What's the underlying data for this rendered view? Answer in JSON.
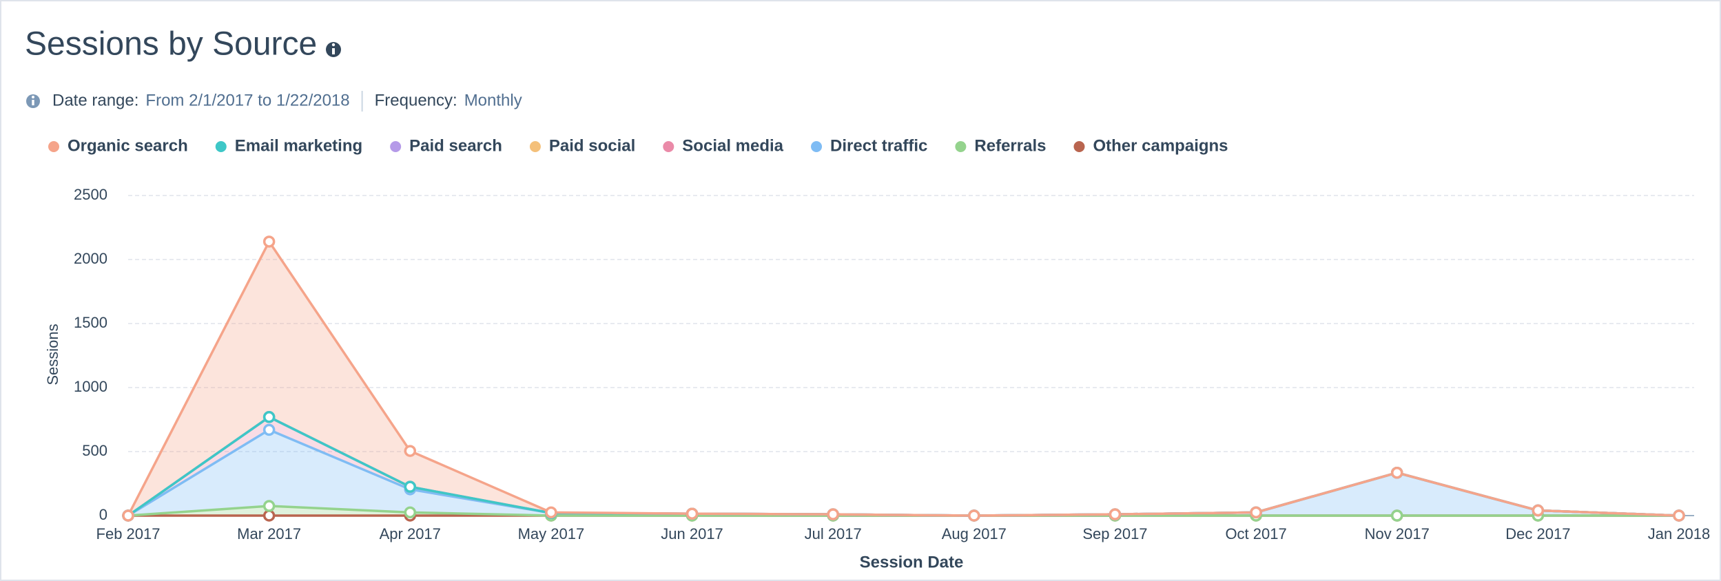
{
  "chart_data": {
    "type": "stacked-area",
    "title": "Sessions by Source",
    "subtitle": [
      "Date range:",
      "From 2/1/2017 to 1/22/2018",
      "Frequency:",
      "Monthly"
    ],
    "categories": [
      "Feb 2017",
      "Mar 2017",
      "Apr 2017",
      "May 2017",
      "Jun 2017",
      "Jul 2017",
      "Aug 2017",
      "Sep 2017",
      "Oct 2017",
      "Nov 2017",
      "Dec 2017",
      "Jan 2018"
    ],
    "series": [
      {
        "name": "Organic search",
        "color": "#f5a48a",
        "values": [
          0,
          1370,
          280,
          5,
          0,
          0,
          0,
          0,
          0,
          0,
          0,
          0
        ]
      },
      {
        "name": "Email marketing",
        "color": "#3ec7c7",
        "values": [
          0,
          0,
          0,
          0,
          0,
          0,
          0,
          0,
          0,
          0,
          0,
          0
        ]
      },
      {
        "name": "Paid search",
        "color": "#b59ae8",
        "values": [
          0,
          0,
          0,
          0,
          0,
          0,
          0,
          0,
          0,
          0,
          0,
          0
        ]
      },
      {
        "name": "Paid social",
        "color": "#f4c07a",
        "values": [
          0,
          0,
          0,
          0,
          0,
          0,
          0,
          0,
          0,
          0,
          0,
          0
        ]
      },
      {
        "name": "Social media",
        "color": "#ea8aa8",
        "values": [
          0,
          100,
          20,
          0,
          0,
          0,
          0,
          0,
          0,
          0,
          0,
          0
        ]
      },
      {
        "name": "Direct traffic",
        "color": "#7fbcf4",
        "values": [
          0,
          595,
          180,
          20,
          15,
          10,
          0,
          10,
          25,
          335,
          40,
          0
        ]
      },
      {
        "name": "Referrals",
        "color": "#94d38d",
        "values": [
          0,
          75,
          25,
          0,
          0,
          0,
          0,
          0,
          0,
          0,
          0,
          0
        ]
      },
      {
        "name": "Other campaigns",
        "color": "#b9654f",
        "values": [
          0,
          0,
          0,
          0,
          0,
          0,
          0,
          0,
          0,
          0,
          0,
          0
        ]
      }
    ],
    "ylim": [
      0,
      2500
    ],
    "yticks": [
      0,
      500,
      1000,
      1500,
      2000,
      2500
    ],
    "grid": true,
    "ylabel": "Sessions",
    "xlabel": "Session Date"
  }
}
